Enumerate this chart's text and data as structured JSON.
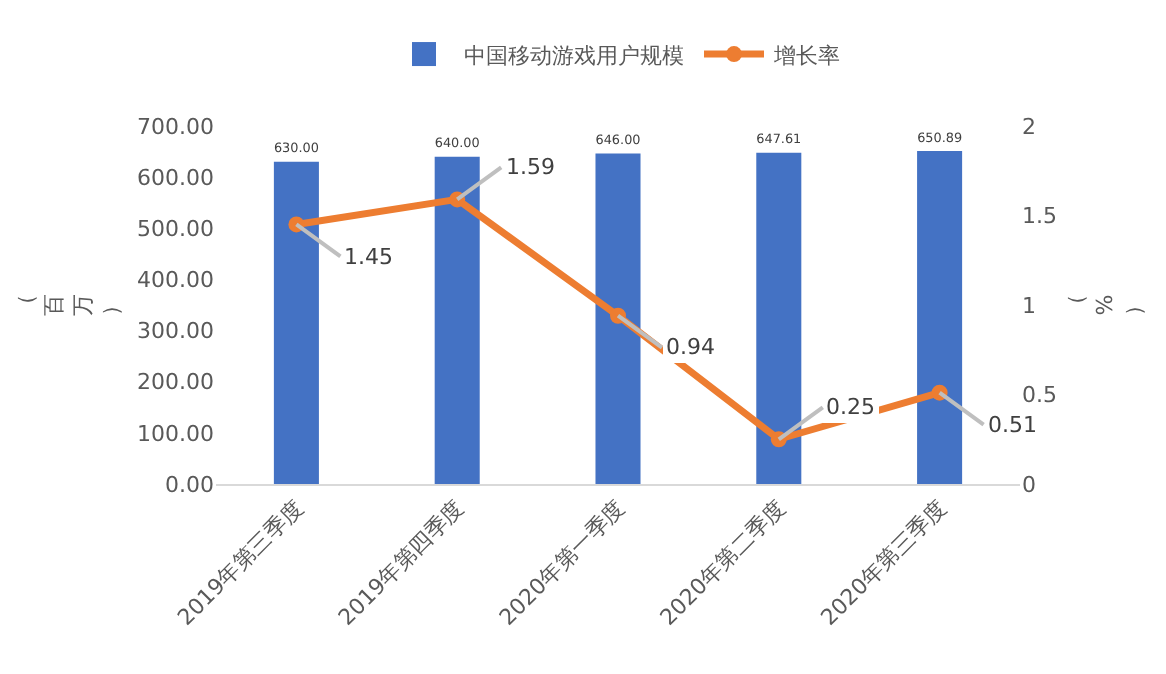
{
  "chart_data": {
    "type": "bar",
    "ylabel": "（百万）",
    "y2label": "（%）",
    "categories": [
      "2019年第三季度",
      "2019年第四季度",
      "2020年第一季度",
      "2020年第二季度",
      "2020年第三季度"
    ],
    "series": [
      {
        "name": "中国移动游戏用户规模",
        "color": "#4472c4",
        "values": [
          630.0,
          640.0,
          646.0,
          647.61,
          650.89
        ],
        "value_labels": [
          "630.00",
          "640.00",
          "646.00",
          "647.61",
          "650.89"
        ]
      },
      {
        "name": "增长率",
        "type": "line",
        "axis": "y2",
        "color": "#ed7d31",
        "marker": "circle",
        "values": [
          1.45,
          1.59,
          0.94,
          0.25,
          0.51
        ],
        "value_labels": [
          "1.45",
          "1.59",
          "0.94",
          "0.25",
          "0.51"
        ]
      }
    ],
    "ylim": [
      0,
      700
    ],
    "yticks": [
      {
        "value": 0,
        "label": "0.00"
      },
      {
        "value": 100,
        "label": "100.00"
      },
      {
        "value": 200,
        "label": "200.00"
      },
      {
        "value": 300,
        "label": "300.00"
      },
      {
        "value": 400,
        "label": "400.00"
      },
      {
        "value": 500,
        "label": "500.00"
      },
      {
        "value": 600,
        "label": "600.00"
      },
      {
        "value": 700,
        "label": "700.00"
      }
    ],
    "y2lim": [
      0,
      2
    ],
    "y2ticks": [
      0,
      0.5,
      1,
      1.5,
      2
    ],
    "grid": false,
    "legend": "top"
  }
}
